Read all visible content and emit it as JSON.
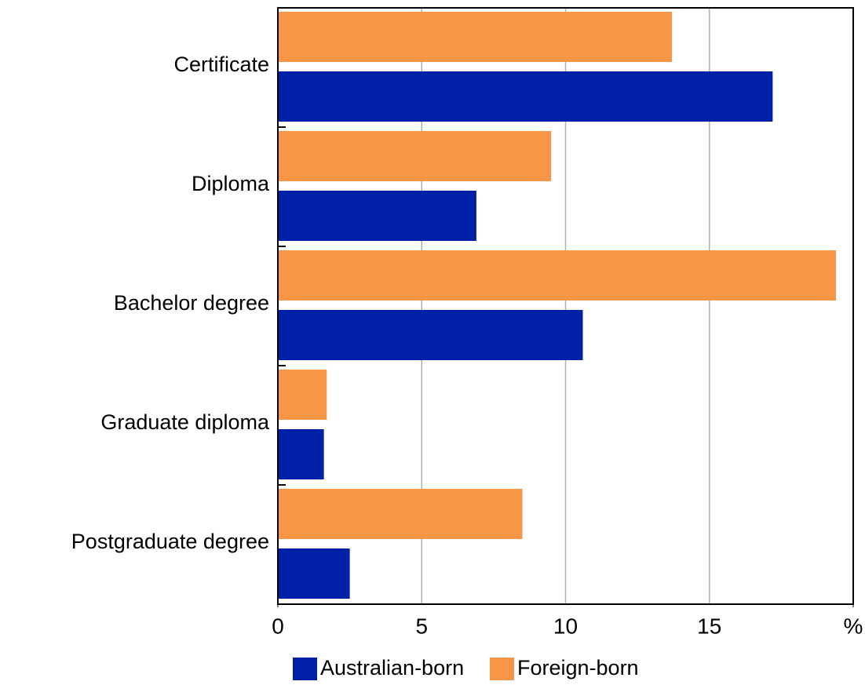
{
  "chart_data": {
    "type": "hbar",
    "categories": [
      "Certificate",
      "Diploma",
      "Bachelor degree",
      "Graduate diploma",
      "Postgraduate degree"
    ],
    "series": [
      {
        "name": "Australian-born",
        "color": "#0020a8",
        "values": [
          17.2,
          6.9,
          10.6,
          1.6,
          2.5
        ]
      },
      {
        "name": "Foreign-born",
        "color": "#f79646",
        "values": [
          13.7,
          9.5,
          19.4,
          1.7,
          8.5
        ]
      }
    ],
    "xlim": [
      0,
      20
    ],
    "xticks": [
      0,
      5,
      10,
      15,
      {
        "value": 20,
        "label": "%"
      }
    ],
    "grid": true,
    "legend": "bottom"
  }
}
